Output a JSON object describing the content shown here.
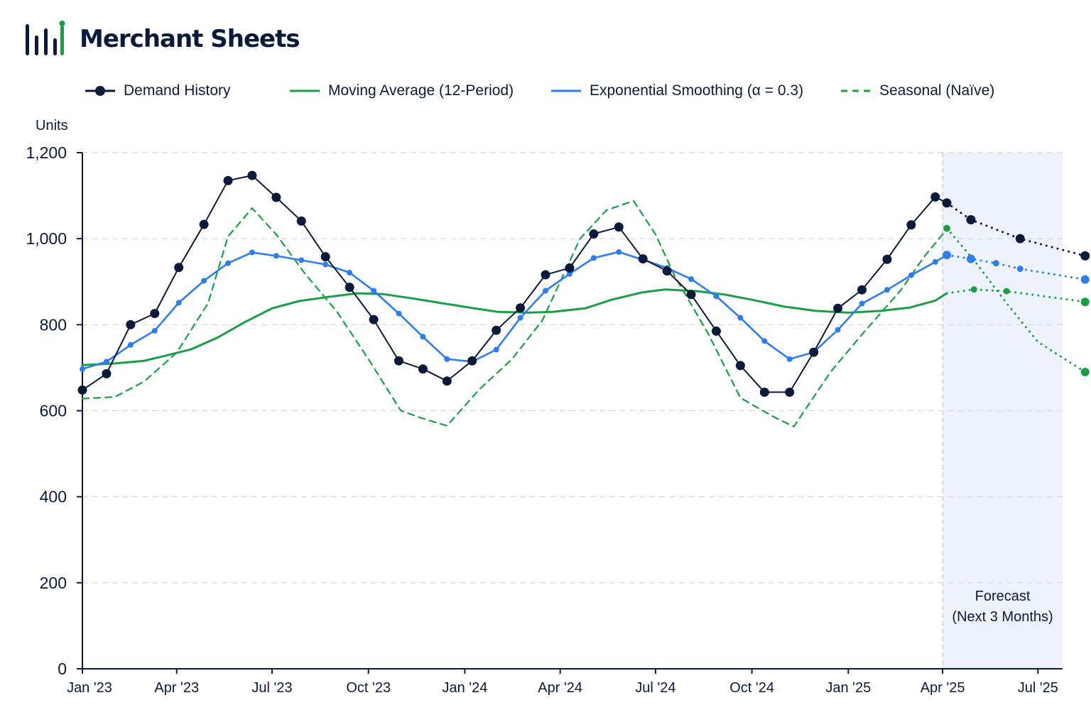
{
  "app": {
    "name": "Merchant Sheets"
  },
  "colors": {
    "navy": "#0b1a3a",
    "green": "#1a9e45",
    "blue": "#2f7cec",
    "grid": "#d2d6dd",
    "forecast_band": "#eef2fa"
  },
  "icons": {
    "logo": "bar-chart-icon"
  },
  "chart_data": {
    "type": "line",
    "ylabel": "Units",
    "xlabel": "",
    "ylim": [
      0,
      1200
    ],
    "yticks": [
      0,
      200,
      400,
      600,
      800,
      1000,
      1200
    ],
    "ytick_labels": [
      "0",
      "200",
      "400",
      "600",
      "800",
      "1,000",
      "1,200"
    ],
    "grid": true,
    "legend_position": "top",
    "x": [
      "2023-01",
      "2023-02",
      "2023-03",
      "2023-04",
      "2023-05",
      "2023-06",
      "2023-07",
      "2023-08",
      "2023-09",
      "2023-10",
      "2023-11",
      "2023-12",
      "2024-01",
      "2024-02",
      "2024-03",
      "2024-04",
      "2024-05",
      "2024-06",
      "2024-07",
      "2024-08",
      "2024-09",
      "2024-10",
      "2024-11",
      "2024-12",
      "2025-01",
      "2025-02",
      "2025-03",
      "2025-04",
      "2025-05",
      "2025-06",
      "2025-07",
      "2025-08"
    ],
    "xticks": [
      "Jan '23",
      "Apr '23",
      "Jul '23",
      "Oct '23",
      "Jan '24",
      "Apr '24",
      "Jul '24",
      "Oct '24",
      "Jan '25",
      "Apr '25",
      "Jul '25"
    ],
    "forecast_start": "2025-04",
    "forecast_label_lines": [
      "Forecast",
      "(Next 3 Months)"
    ],
    "series": [
      {
        "name": "Demand History",
        "color": "#0b1a3a",
        "marker": "dot",
        "history": [
          [
            "2023-01",
            648
          ],
          [
            "2023-01-24",
            686
          ],
          [
            "2023-02-16",
            800
          ],
          [
            "2023-03-11",
            826
          ],
          [
            "2023-04-03",
            933
          ],
          [
            "2023-04-27",
            1033
          ],
          [
            "2023-05-20",
            1135
          ],
          [
            "2023-06-12",
            1147
          ],
          [
            "2023-07-05",
            1096
          ],
          [
            "2023-07-29",
            1041
          ],
          [
            "2023-08-21",
            958
          ],
          [
            "2023-09-13",
            887
          ],
          [
            "2023-10-06",
            812
          ],
          [
            "2023-10-30",
            716
          ],
          [
            "2023-11-22",
            697
          ],
          [
            "2023-12-15",
            669
          ],
          [
            "2024-01-08",
            716
          ],
          [
            "2024-01-31",
            787
          ],
          [
            "2024-02-23",
            839
          ],
          [
            "2024-03-18",
            916
          ],
          [
            "2024-04-10",
            932
          ],
          [
            "2024-05-03",
            1011
          ],
          [
            "2024-05-27",
            1027
          ],
          [
            "2024-06-19",
            953
          ],
          [
            "2024-07-12",
            925
          ],
          [
            "2024-08-04",
            870
          ],
          [
            "2024-08-28",
            785
          ],
          [
            "2024-09-20",
            705
          ],
          [
            "2024-10-13",
            643
          ],
          [
            "2024-11-06",
            643
          ],
          [
            "2024-11-29",
            736
          ],
          [
            "2024-12-22",
            838
          ],
          [
            "2025-01-14",
            881
          ],
          [
            "2025-02-07",
            952
          ],
          [
            "2025-03-02",
            1032
          ],
          [
            "2025-03-25",
            1097
          ],
          [
            "2025-04-05",
            1083
          ]
        ],
        "forecast": [
          [
            "2025-04-05",
            1083
          ],
          [
            "2025-04-28",
            1044
          ],
          [
            "2025-06-14",
            1000
          ],
          [
            "2025-08-15",
            960
          ]
        ]
      },
      {
        "name": "Moving Average (12-Period)",
        "color": "#1a9e45",
        "marker": "none",
        "history": [
          [
            "2023-01",
            706
          ],
          [
            "2023-02-01",
            710
          ],
          [
            "2023-03-01",
            716
          ],
          [
            "2023-03-18",
            726
          ],
          [
            "2023-04-15",
            743
          ],
          [
            "2023-05-10",
            770
          ],
          [
            "2023-06-05",
            806
          ],
          [
            "2023-07-01",
            838
          ],
          [
            "2023-07-27",
            855
          ],
          [
            "2023-08-25",
            865
          ],
          [
            "2023-09-20",
            873
          ],
          [
            "2023-10-15",
            871
          ],
          [
            "2023-11-10",
            862
          ],
          [
            "2023-12-10",
            850
          ],
          [
            "2024-01-05",
            840
          ],
          [
            "2024-02-01",
            830
          ],
          [
            "2024-03-01",
            828
          ],
          [
            "2024-03-25",
            830
          ],
          [
            "2024-04-25",
            838
          ],
          [
            "2024-05-20",
            858
          ],
          [
            "2024-06-18",
            875
          ],
          [
            "2024-07-10",
            882
          ],
          [
            "2024-08-10",
            878
          ],
          [
            "2024-09-05",
            870
          ],
          [
            "2024-10-01",
            858
          ],
          [
            "2024-11-01",
            842
          ],
          [
            "2024-12-01",
            832
          ],
          [
            "2025-01-01",
            828
          ],
          [
            "2025-02-01",
            832
          ],
          [
            "2025-03-01",
            840
          ],
          [
            "2025-03-25",
            856
          ],
          [
            "2025-04-05",
            873
          ]
        ],
        "forecast": [
          [
            "2025-04-05",
            873
          ],
          [
            "2025-05-01",
            882
          ],
          [
            "2025-06-01",
            878
          ],
          [
            "2025-07-01",
            868
          ],
          [
            "2025-08-15",
            853
          ]
        ]
      },
      {
        "name": "Exponential Smoothing (α = 0.3)",
        "color": "#2f7cec",
        "marker": "small-dot",
        "history": [
          [
            "2023-01",
            697
          ],
          [
            "2023-01-24",
            714
          ],
          [
            "2023-02-16",
            753
          ],
          [
            "2023-03-11",
            786
          ],
          [
            "2023-04-03",
            851
          ],
          [
            "2023-04-27",
            902
          ],
          [
            "2023-05-20",
            943
          ],
          [
            "2023-06-12",
            968
          ],
          [
            "2023-07-05",
            960
          ],
          [
            "2023-07-29",
            950
          ],
          [
            "2023-08-21",
            940
          ],
          [
            "2023-09-13",
            921
          ],
          [
            "2023-10-06",
            879
          ],
          [
            "2023-10-30",
            826
          ],
          [
            "2023-11-22",
            772
          ],
          [
            "2023-12-15",
            720
          ],
          [
            "2024-01-08",
            714
          ],
          [
            "2024-01-31",
            742
          ],
          [
            "2024-02-23",
            816
          ],
          [
            "2024-03-18",
            879
          ],
          [
            "2024-04-10",
            918
          ],
          [
            "2024-05-03",
            955
          ],
          [
            "2024-05-27",
            969
          ],
          [
            "2024-06-19",
            951
          ],
          [
            "2024-07-12",
            932
          ],
          [
            "2024-08-04",
            906
          ],
          [
            "2024-08-28",
            866
          ],
          [
            "2024-09-20",
            816
          ],
          [
            "2024-10-13",
            762
          ],
          [
            "2024-11-06",
            720
          ],
          [
            "2024-11-29",
            736
          ],
          [
            "2024-12-22",
            788
          ],
          [
            "2025-01-14",
            849
          ],
          [
            "2025-02-07",
            881
          ],
          [
            "2025-03-02",
            915
          ],
          [
            "2025-03-25",
            946
          ],
          [
            "2025-04-05",
            962
          ]
        ],
        "forecast": [
          [
            "2025-04-05",
            962
          ],
          [
            "2025-04-28",
            953
          ],
          [
            "2025-05-22",
            943
          ],
          [
            "2025-06-14",
            930
          ],
          [
            "2025-08-15",
            905
          ]
        ]
      },
      {
        "name": "Seasonal (Naïve)",
        "color": "#1a9e45",
        "marker": "dash",
        "history": [
          [
            "2023-01",
            628
          ],
          [
            "2023-02-01",
            632
          ],
          [
            "2023-03-01",
            668
          ],
          [
            "2023-04-01",
            735
          ],
          [
            "2023-05-01",
            850
          ],
          [
            "2023-05-20",
            1005
          ],
          [
            "2023-06-12",
            1071
          ],
          [
            "2023-07-05",
            1010
          ],
          [
            "2023-08-01",
            920
          ],
          [
            "2023-09-01",
            830
          ],
          [
            "2023-10-01",
            720
          ],
          [
            "2023-11-01",
            600
          ],
          [
            "2023-11-22",
            582
          ],
          [
            "2023-12-15",
            565
          ],
          [
            "2024-01-15",
            650
          ],
          [
            "2024-02-15",
            720
          ],
          [
            "2024-03-15",
            810
          ],
          [
            "2024-04-20",
            1000
          ],
          [
            "2024-05-15",
            1066
          ],
          [
            "2024-06-10",
            1088
          ],
          [
            "2024-07-01",
            1010
          ],
          [
            "2024-07-20",
            910
          ],
          [
            "2024-08-20",
            780
          ],
          [
            "2024-09-20",
            630
          ],
          [
            "2024-10-20",
            588
          ],
          [
            "2024-11-10",
            563
          ],
          [
            "2024-12-15",
            690
          ],
          [
            "2025-01-15",
            780
          ],
          [
            "2025-02-20",
            880
          ],
          [
            "2025-03-15",
            960
          ],
          [
            "2025-04-01",
            1010
          ],
          [
            "2025-04-05",
            1024
          ]
        ],
        "forecast": [
          [
            "2025-04-05",
            1024
          ],
          [
            "2025-05-01",
            950
          ],
          [
            "2025-06-01",
            850
          ],
          [
            "2025-07-01",
            760
          ],
          [
            "2025-08-15",
            690
          ]
        ]
      }
    ]
  }
}
